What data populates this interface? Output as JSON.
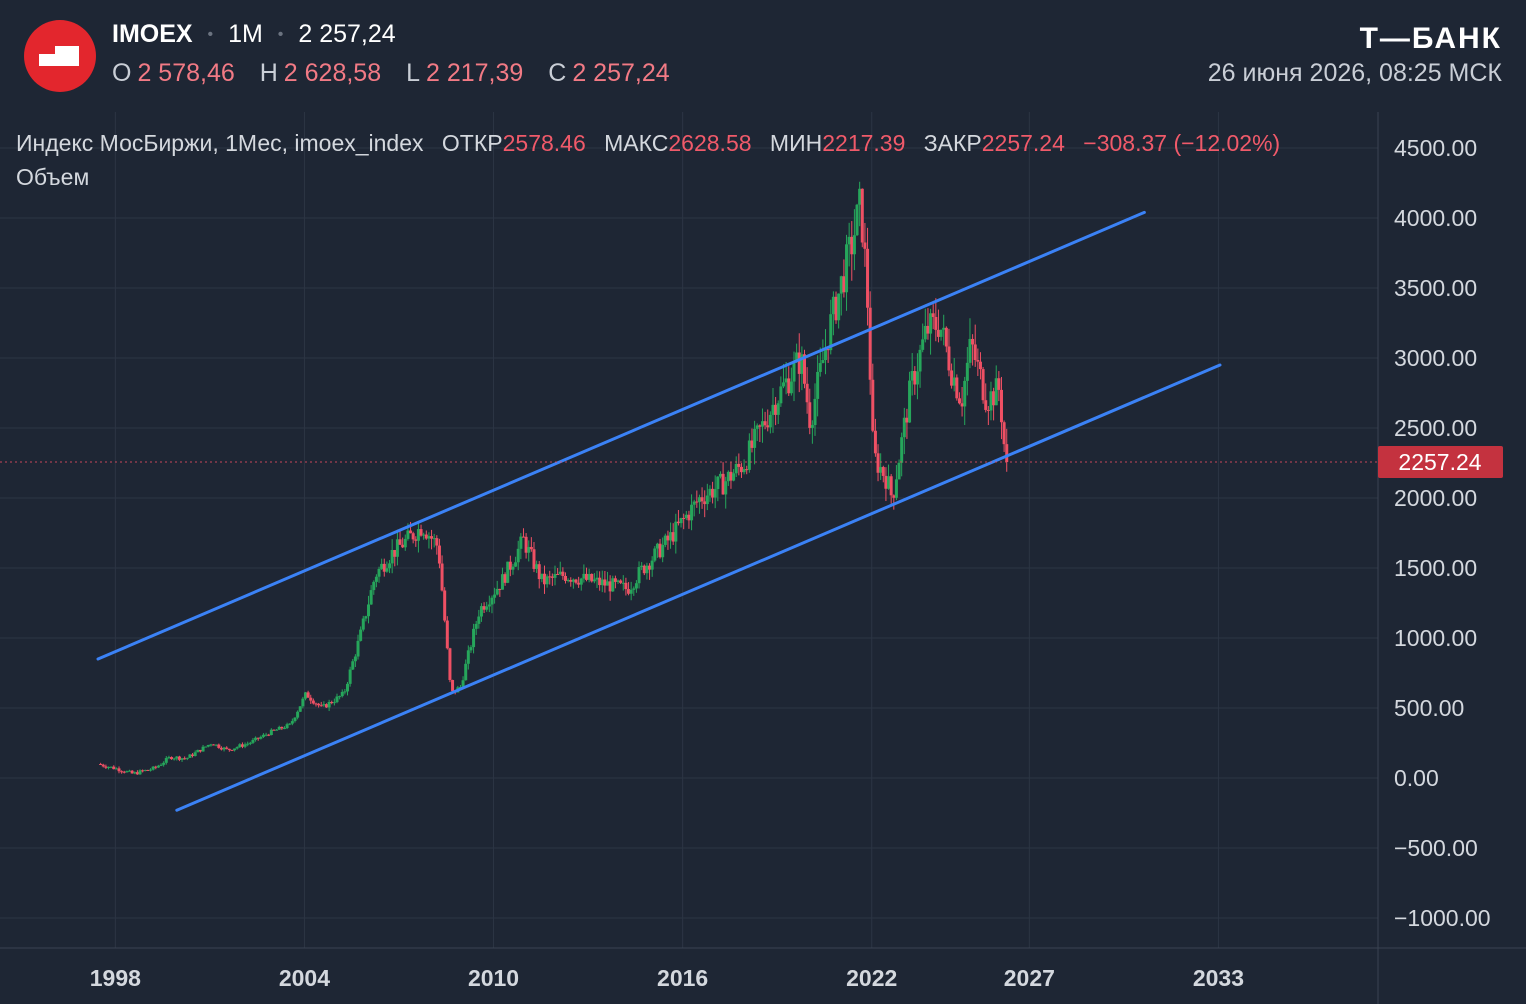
{
  "header": {
    "symbol": "IMOEX",
    "timeframe": "1M",
    "price": "2 257,24",
    "ohlc": [
      {
        "key": "O",
        "value": "2 578,46"
      },
      {
        "key": "H",
        "value": "2 628,58"
      },
      {
        "key": "L",
        "value": "2 217,39"
      },
      {
        "key": "C",
        "value": "2 257,24"
      }
    ],
    "brand": "Т—БАНК",
    "datetime": "26 июня 2026, 08:25 МСК"
  },
  "legend": {
    "name": "Индекс МосБиржи, 1Мес, imoex_index",
    "open_label": "ОТКР",
    "open": "2578.46",
    "high_label": "МАКС",
    "high": "2628.58",
    "low_label": "МИН",
    "low": "2217.39",
    "close_label": "ЗАКР",
    "close": "2257.24",
    "change": "−308.37 (−12.02%)",
    "volume_label": "Объем"
  },
  "colors": {
    "background": "#1e2634",
    "up": "#26a65b",
    "down": "#ef5064",
    "trendline": "#3b82f6",
    "last_price_tag": "#c4323f",
    "grid": "#2c3544"
  },
  "chart_data": {
    "type": "candlestick",
    "interval": "1M",
    "y_ticks": [
      "4500.00",
      "4000.00",
      "3500.00",
      "3000.00",
      "2500.00",
      "2000.00",
      "1500.00",
      "1000.00",
      "500.00",
      "0.00",
      "−500.00",
      "−1000.00"
    ],
    "x_ticks": [
      "1998",
      "2004",
      "2010",
      "2016",
      "2022",
      "2027",
      "2033"
    ],
    "ylim": [
      -1150,
      4640
    ],
    "last_price": 2257.24,
    "last_price_label": "2257.24",
    "trendlines": [
      {
        "from": {
          "x": 1997.7,
          "y": 850
        },
        "to": {
          "x": 2030.9,
          "y": 4040
        }
      },
      {
        "from": {
          "x": 2000.2,
          "y": -230
        },
        "to": {
          "x": 2033.3,
          "y": 2950
        }
      }
    ],
    "series_anchors": [
      {
        "x": 1997.7,
        "y": 100
      },
      {
        "x": 1998.4,
        "y": 60
      },
      {
        "x": 1998.8,
        "y": 30
      },
      {
        "x": 1999.5,
        "y": 70
      },
      {
        "x": 2000.0,
        "y": 150
      },
      {
        "x": 2000.5,
        "y": 140
      },
      {
        "x": 2001.3,
        "y": 250
      },
      {
        "x": 2001.8,
        "y": 200
      },
      {
        "x": 2002.5,
        "y": 250
      },
      {
        "x": 2003.2,
        "y": 330
      },
      {
        "x": 2003.8,
        "y": 380
      },
      {
        "x": 2004.3,
        "y": 600
      },
      {
        "x": 2004.8,
        "y": 500
      },
      {
        "x": 2005.5,
        "y": 600
      },
      {
        "x": 2006.0,
        "y": 1000
      },
      {
        "x": 2006.5,
        "y": 1450
      },
      {
        "x": 2007.0,
        "y": 1600
      },
      {
        "x": 2007.5,
        "y": 1700
      },
      {
        "x": 2008.0,
        "y": 1800
      },
      {
        "x": 2008.5,
        "y": 1650
      },
      {
        "x": 2008.9,
        "y": 600
      },
      {
        "x": 2009.2,
        "y": 650
      },
      {
        "x": 2009.8,
        "y": 1200
      },
      {
        "x": 2010.5,
        "y": 1400
      },
      {
        "x": 2011.2,
        "y": 1700
      },
      {
        "x": 2011.8,
        "y": 1400
      },
      {
        "x": 2012.5,
        "y": 1450
      },
      {
        "x": 2013.5,
        "y": 1400
      },
      {
        "x": 2014.5,
        "y": 1350
      },
      {
        "x": 2015.0,
        "y": 1500
      },
      {
        "x": 2015.8,
        "y": 1700
      },
      {
        "x": 2016.8,
        "y": 2000
      },
      {
        "x": 2017.5,
        "y": 2100
      },
      {
        "x": 2018.2,
        "y": 2250
      },
      {
        "x": 2019.2,
        "y": 2700
      },
      {
        "x": 2020.0,
        "y": 3000
      },
      {
        "x": 2020.3,
        "y": 2550
      },
      {
        "x": 2020.9,
        "y": 3200
      },
      {
        "x": 2021.6,
        "y": 3800
      },
      {
        "x": 2021.9,
        "y": 4100
      },
      {
        "x": 2022.1,
        "y": 3500
      },
      {
        "x": 2022.3,
        "y": 2300
      },
      {
        "x": 2022.7,
        "y": 2150
      },
      {
        "x": 2022.9,
        "y": 2000
      },
      {
        "x": 2023.5,
        "y": 2800
      },
      {
        "x": 2024.0,
        "y": 3200
      },
      {
        "x": 2024.4,
        "y": 3250
      },
      {
        "x": 2024.8,
        "y": 2900
      },
      {
        "x": 2025.1,
        "y": 2700
      },
      {
        "x": 2025.4,
        "y": 3100
      },
      {
        "x": 2025.9,
        "y": 2700
      },
      {
        "x": 2026.3,
        "y": 2780
      },
      {
        "x": 2026.5,
        "y": 2257
      }
    ]
  }
}
